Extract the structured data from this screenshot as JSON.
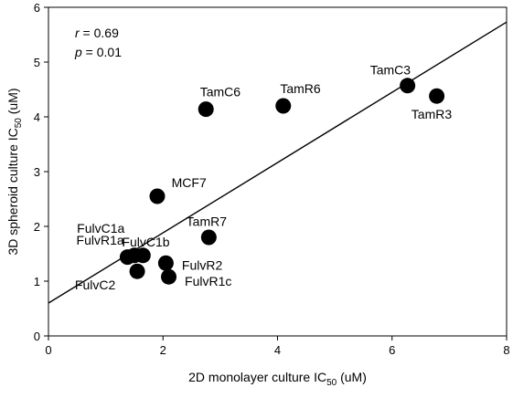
{
  "chart_data": {
    "type": "scatter",
    "xlabel": "2D monolayer culture IC",
    "xlabel_sub": "50",
    "xlabel_tail": " (uM)",
    "ylabel": "3D spheroid culture IC",
    "ylabel_sub": "50",
    "ylabel_tail": " (uM)",
    "xlim": [
      0,
      8
    ],
    "ylim": [
      0,
      6
    ],
    "xticks": [
      "0",
      "2",
      "4",
      "6",
      "8"
    ],
    "yticks": [
      "0",
      "1",
      "2",
      "3",
      "4",
      "5",
      "6"
    ],
    "stats": {
      "r_label": "r",
      "r_value": " = 0.69",
      "p_label": "p",
      "p_value": " = 0.01"
    },
    "points": [
      {
        "label": "TamC6",
        "x": 2.75,
        "y": 4.14,
        "anchor": "middle",
        "dx": 0.25,
        "dy": 0.32
      },
      {
        "label": "TamR6",
        "x": 4.1,
        "y": 4.2,
        "anchor": "middle",
        "dx": 0.3,
        "dy": 0.32
      },
      {
        "label": "TamC3",
        "x": 6.27,
        "y": 4.57,
        "anchor": "middle",
        "dx": -0.3,
        "dy": 0.29
      },
      {
        "label": "TamR3",
        "x": 6.78,
        "y": 4.38,
        "anchor": "middle",
        "dx": -0.09,
        "dy": -0.33
      },
      {
        "label": "MCF7",
        "x": 1.9,
        "y": 2.55,
        "anchor": "start",
        "dx": 0.25,
        "dy": 0.25
      },
      {
        "label": "TamR7",
        "x": 2.8,
        "y": 1.8,
        "anchor": "middle",
        "dx": -0.04,
        "dy": 0.29
      },
      {
        "label": "FulvC1a",
        "x": 1.38,
        "y": 1.44,
        "anchor": "end",
        "dx": -0.05,
        "dy": 0.53
      },
      {
        "label": "FulvR1a",
        "x": 1.5,
        "y": 1.47,
        "anchor": "end",
        "dx": -0.18,
        "dy": 0.28
      },
      {
        "label": "FulvC1b",
        "x": 1.65,
        "y": 1.47,
        "anchor": "middle",
        "dx": 0.05,
        "dy": 0.25
      },
      {
        "label": "FulvR2",
        "x": 2.05,
        "y": 1.33,
        "anchor": "start",
        "dx": 0.28,
        "dy": -0.04
      },
      {
        "label": "FulvC2",
        "x": 1.55,
        "y": 1.18,
        "anchor": "end",
        "dx": -0.38,
        "dy": -0.25
      },
      {
        "label": "FulvR1c",
        "x": 2.1,
        "y": 1.08,
        "anchor": "start",
        "dx": 0.28,
        "dy": -0.08
      }
    ],
    "regression": {
      "x1": 0,
      "y1": 0.6,
      "x2": 8,
      "y2": 5.73
    }
  }
}
